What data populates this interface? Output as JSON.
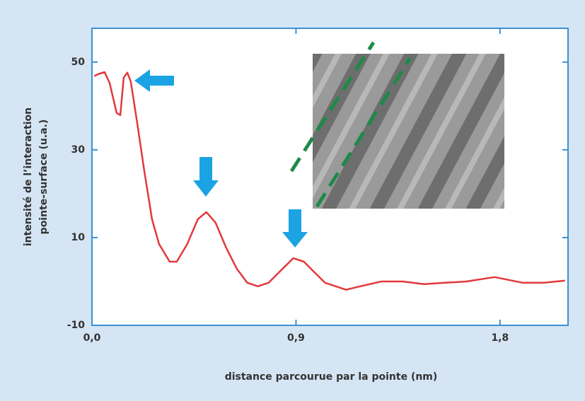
{
  "chart_data": {
    "type": "line",
    "xlabel": "distance parcourue par la pointe (nm)",
    "ylabel": [
      "intensité de l’interaction",
      "pointe-surface (u.a.)"
    ],
    "xlim": [
      0,
      2.1
    ],
    "ylim": [
      -10,
      57.7
    ],
    "xticks": [
      {
        "value": 0,
        "label": "0,0"
      },
      {
        "value": 0.9,
        "label": "0,9"
      },
      {
        "value": 1.8,
        "label": "1,8"
      }
    ],
    "yticks": [
      -10,
      10,
      30,
      50
    ],
    "grid": false,
    "color": "#e2393b",
    "x": [
      0.01,
      0.03,
      0.056,
      0.078,
      0.109,
      0.125,
      0.14,
      0.156,
      0.171,
      0.2,
      0.23,
      0.265,
      0.296,
      0.343,
      0.374,
      0.42,
      0.467,
      0.505,
      0.545,
      0.592,
      0.639,
      0.685,
      0.732,
      0.779,
      0.841,
      0.888,
      0.935,
      0.981,
      1.028,
      1.075,
      1.121,
      1.184,
      1.277,
      1.371,
      1.464,
      1.558,
      1.651,
      1.776,
      1.9,
      1.994,
      2.087
    ],
    "values": [
      46.8,
      47.3,
      47.7,
      45.2,
      38.4,
      37.9,
      46.5,
      47.6,
      45.6,
      36,
      25.5,
      14.2,
      8.5,
      4.5,
      4.5,
      8.5,
      14.2,
      15.8,
      13.4,
      7.7,
      2.9,
      -0.3,
      -1.1,
      -0.3,
      2.9,
      5.3,
      4.5,
      2.1,
      -0.3,
      -1.1,
      -1.9,
      -1.1,
      0,
      0,
      -0.6,
      -0.3,
      0,
      1,
      -0.3,
      -0.3,
      0.2
    ]
  }
}
